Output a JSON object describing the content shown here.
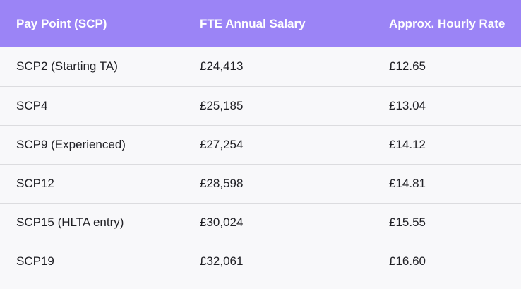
{
  "table": {
    "headers": [
      "Pay Point (SCP)",
      "FTE Annual Salary",
      "Approx. Hourly Rate"
    ],
    "rows": [
      [
        "SCP2 (Starting TA)",
        "£24,413",
        "£12.65"
      ],
      [
        "SCP4",
        "£25,185",
        "£13.04"
      ],
      [
        "SCP9 (Experienced)",
        "£27,254",
        "£14.12"
      ],
      [
        "SCP12",
        "£28,598",
        "£14.81"
      ],
      [
        "SCP15 (HLTA entry)",
        "£30,024",
        "£15.55"
      ],
      [
        "SCP19",
        "£32,061",
        "£16.60"
      ]
    ]
  },
  "colors": {
    "header_bg": "#9b84f6",
    "header_text": "#ffffff",
    "row_bg": "#f8f8fa",
    "divider": "#dcdcdf"
  }
}
